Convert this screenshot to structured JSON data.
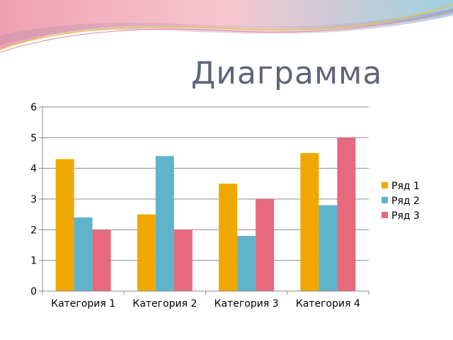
{
  "slide": {
    "title": "Диаграмма"
  },
  "theme": {
    "banner_colors": [
      "#e8c04a",
      "#f3a3b6",
      "#a7c6da",
      "#8fa3c6"
    ]
  },
  "chart_data": {
    "type": "bar",
    "categories": [
      "Категория 1",
      "Категория 2",
      "Категория 3",
      "Категория 4"
    ],
    "series": [
      {
        "name": "Ряд 1",
        "color": "#f0a800",
        "values": [
          4.3,
          2.5,
          3.5,
          4.5
        ]
      },
      {
        "name": "Ряд 2",
        "color": "#5fb4cc",
        "values": [
          2.4,
          4.4,
          1.8,
          2.8
        ]
      },
      {
        "name": "Ряд 3",
        "color": "#e6697e",
        "values": [
          2.0,
          2.0,
          3.0,
          5.0
        ]
      }
    ],
    "ylim": [
      0,
      6
    ],
    "yticks": [
      0,
      1,
      2,
      3,
      4,
      5,
      6
    ],
    "grid": true,
    "legend": "right"
  }
}
